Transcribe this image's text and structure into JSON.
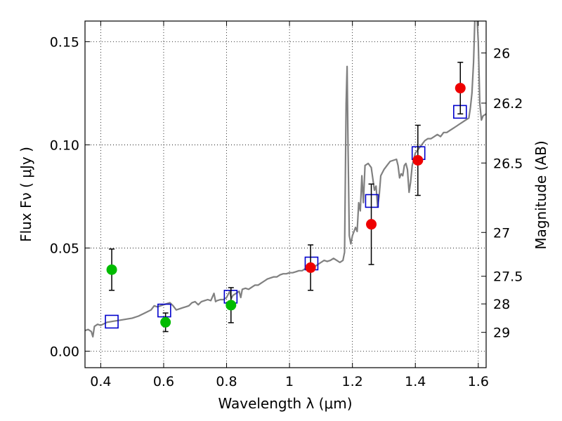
{
  "chart_data": {
    "type": "scatter",
    "xlabel": "Wavelength  λ (μm)",
    "ylabel": "Flux  Fν  ( μJy )",
    "y2label": "Magnitude (AB)",
    "xlim": [
      0.35,
      1.625
    ],
    "ylim": [
      -0.008,
      0.16
    ],
    "grid": true,
    "x_ticks": [
      {
        "value": 0.4,
        "label": "0.4"
      },
      {
        "value": 0.6,
        "label": "0.6"
      },
      {
        "value": 0.8,
        "label": "0.8"
      },
      {
        "value": 1.0,
        "label": "1"
      },
      {
        "value": 1.2,
        "label": "1.2"
      },
      {
        "value": 1.4,
        "label": "1.4"
      },
      {
        "value": 1.6,
        "label": "1.6"
      }
    ],
    "y_ticks": [
      {
        "value": 0.0,
        "label": "0.00"
      },
      {
        "value": 0.05,
        "label": "0.05"
      },
      {
        "value": 0.1,
        "label": "0.10"
      },
      {
        "value": 0.15,
        "label": "0.15"
      }
    ],
    "mag_ticks": [
      {
        "value": 26,
        "label": "26"
      },
      {
        "value": 26.2,
        "label": "26.2"
      },
      {
        "value": 26.5,
        "label": "26.5"
      },
      {
        "value": 27,
        "label": "27"
      },
      {
        "value": 27.5,
        "label": "27.5"
      },
      {
        "value": 28,
        "label": "28"
      },
      {
        "value": 29,
        "label": "29"
      }
    ],
    "spectrum": {
      "color": "#808080",
      "points": [
        [
          0.35,
          0.01
        ],
        [
          0.36,
          0.0105
        ],
        [
          0.37,
          0.0095
        ],
        [
          0.375,
          0.007
        ],
        [
          0.38,
          0.012
        ],
        [
          0.39,
          0.013
        ],
        [
          0.4,
          0.0125
        ],
        [
          0.42,
          0.014
        ],
        [
          0.44,
          0.0145
        ],
        [
          0.46,
          0.015
        ],
        [
          0.48,
          0.0155
        ],
        [
          0.5,
          0.016
        ],
        [
          0.52,
          0.017
        ],
        [
          0.54,
          0.0185
        ],
        [
          0.56,
          0.02
        ],
        [
          0.57,
          0.022
        ],
        [
          0.58,
          0.0215
        ],
        [
          0.59,
          0.022
        ],
        [
          0.6,
          0.0225
        ],
        [
          0.61,
          0.023
        ],
        [
          0.62,
          0.0235
        ],
        [
          0.63,
          0.022
        ],
        [
          0.64,
          0.02
        ],
        [
          0.65,
          0.0205
        ],
        [
          0.66,
          0.021
        ],
        [
          0.67,
          0.0215
        ],
        [
          0.68,
          0.022
        ],
        [
          0.69,
          0.0235
        ],
        [
          0.7,
          0.024
        ],
        [
          0.71,
          0.0225
        ],
        [
          0.72,
          0.024
        ],
        [
          0.73,
          0.0245
        ],
        [
          0.74,
          0.025
        ],
        [
          0.75,
          0.0245
        ],
        [
          0.76,
          0.028
        ],
        [
          0.765,
          0.024
        ],
        [
          0.77,
          0.0245
        ],
        [
          0.78,
          0.025
        ],
        [
          0.79,
          0.025
        ],
        [
          0.8,
          0.026
        ],
        [
          0.81,
          0.029
        ],
        [
          0.815,
          0.0255
        ],
        [
          0.82,
          0.027
        ],
        [
          0.83,
          0.028
        ],
        [
          0.84,
          0.029
        ],
        [
          0.845,
          0.026
        ],
        [
          0.85,
          0.03
        ],
        [
          0.86,
          0.0305
        ],
        [
          0.87,
          0.03
        ],
        [
          0.88,
          0.031
        ],
        [
          0.89,
          0.032
        ],
        [
          0.9,
          0.032
        ],
        [
          0.91,
          0.033
        ],
        [
          0.92,
          0.034
        ],
        [
          0.93,
          0.035
        ],
        [
          0.94,
          0.0355
        ],
        [
          0.95,
          0.036
        ],
        [
          0.96,
          0.036
        ],
        [
          0.97,
          0.037
        ],
        [
          0.98,
          0.0375
        ],
        [
          0.99,
          0.0375
        ],
        [
          1.0,
          0.038
        ],
        [
          1.01,
          0.038
        ],
        [
          1.02,
          0.0385
        ],
        [
          1.03,
          0.039
        ],
        [
          1.04,
          0.039
        ],
        [
          1.05,
          0.04
        ],
        [
          1.06,
          0.041
        ],
        [
          1.07,
          0.042
        ],
        [
          1.08,
          0.041
        ],
        [
          1.09,
          0.042
        ],
        [
          1.1,
          0.043
        ],
        [
          1.11,
          0.044
        ],
        [
          1.12,
          0.0435
        ],
        [
          1.13,
          0.044
        ],
        [
          1.14,
          0.045
        ],
        [
          1.15,
          0.044
        ],
        [
          1.16,
          0.043
        ],
        [
          1.17,
          0.044
        ],
        [
          1.175,
          0.048
        ],
        [
          1.18,
          0.12
        ],
        [
          1.183,
          0.138
        ],
        [
          1.186,
          0.1
        ],
        [
          1.19,
          0.056
        ],
        [
          1.195,
          0.052
        ],
        [
          1.2,
          0.056
        ],
        [
          1.21,
          0.06
        ],
        [
          1.215,
          0.058
        ],
        [
          1.22,
          0.072
        ],
        [
          1.225,
          0.068
        ],
        [
          1.23,
          0.085
        ],
        [
          1.235,
          0.072
        ],
        [
          1.24,
          0.09
        ],
        [
          1.25,
          0.091
        ],
        [
          1.26,
          0.089
        ],
        [
          1.27,
          0.078
        ],
        [
          1.275,
          0.08
        ],
        [
          1.28,
          0.07
        ],
        [
          1.285,
          0.075
        ],
        [
          1.29,
          0.085
        ],
        [
          1.3,
          0.088
        ],
        [
          1.31,
          0.09
        ],
        [
          1.32,
          0.092
        ],
        [
          1.33,
          0.0925
        ],
        [
          1.34,
          0.093
        ],
        [
          1.345,
          0.09
        ],
        [
          1.35,
          0.084
        ],
        [
          1.355,
          0.086
        ],
        [
          1.36,
          0.085
        ],
        [
          1.365,
          0.09
        ],
        [
          1.37,
          0.091
        ],
        [
          1.375,
          0.088
        ],
        [
          1.38,
          0.077
        ],
        [
          1.385,
          0.082
        ],
        [
          1.39,
          0.09
        ],
        [
          1.4,
          0.096
        ],
        [
          1.41,
          0.098
        ],
        [
          1.42,
          0.1
        ],
        [
          1.43,
          0.102
        ],
        [
          1.44,
          0.103
        ],
        [
          1.45,
          0.103
        ],
        [
          1.46,
          0.104
        ],
        [
          1.47,
          0.105
        ],
        [
          1.48,
          0.104
        ],
        [
          1.49,
          0.106
        ],
        [
          1.5,
          0.106
        ],
        [
          1.51,
          0.107
        ],
        [
          1.52,
          0.108
        ],
        [
          1.53,
          0.109
        ],
        [
          1.54,
          0.11
        ],
        [
          1.55,
          0.111
        ],
        [
          1.56,
          0.112
        ],
        [
          1.57,
          0.113
        ],
        [
          1.575,
          0.118
        ],
        [
          1.58,
          0.125
        ],
        [
          1.585,
          0.14
        ],
        [
          1.59,
          0.165
        ],
        [
          1.595,
          0.165
        ],
        [
          1.6,
          0.15
        ],
        [
          1.605,
          0.12
        ],
        [
          1.61,
          0.112
        ],
        [
          1.615,
          0.114
        ],
        [
          1.625,
          0.115
        ]
      ]
    },
    "model_photometry": {
      "marker": "open-square",
      "color": "#0000cc",
      "points": [
        [
          0.435,
          0.0143
        ],
        [
          0.602,
          0.0197
        ],
        [
          0.813,
          0.0264
        ],
        [
          1.07,
          0.0425
        ],
        [
          1.262,
          0.0728
        ],
        [
          1.41,
          0.096
        ],
        [
          1.542,
          0.116
        ]
      ]
    },
    "green_points": {
      "color": "#00bb00",
      "points": [
        {
          "x": 0.435,
          "y": 0.0395,
          "err": 0.01
        },
        {
          "x": 0.606,
          "y": 0.014,
          "err": 0.0045
        },
        {
          "x": 0.814,
          "y": 0.0223,
          "err": 0.0085
        }
      ]
    },
    "red_points": {
      "color": "#ee0000",
      "points": [
        {
          "x": 1.067,
          "y": 0.0405,
          "err": 0.011
        },
        {
          "x": 1.26,
          "y": 0.0615,
          "err": 0.0195
        },
        {
          "x": 1.408,
          "y": 0.0925,
          "err": 0.017
        },
        {
          "x": 1.543,
          "y": 0.1275,
          "err": 0.0125
        }
      ]
    }
  }
}
